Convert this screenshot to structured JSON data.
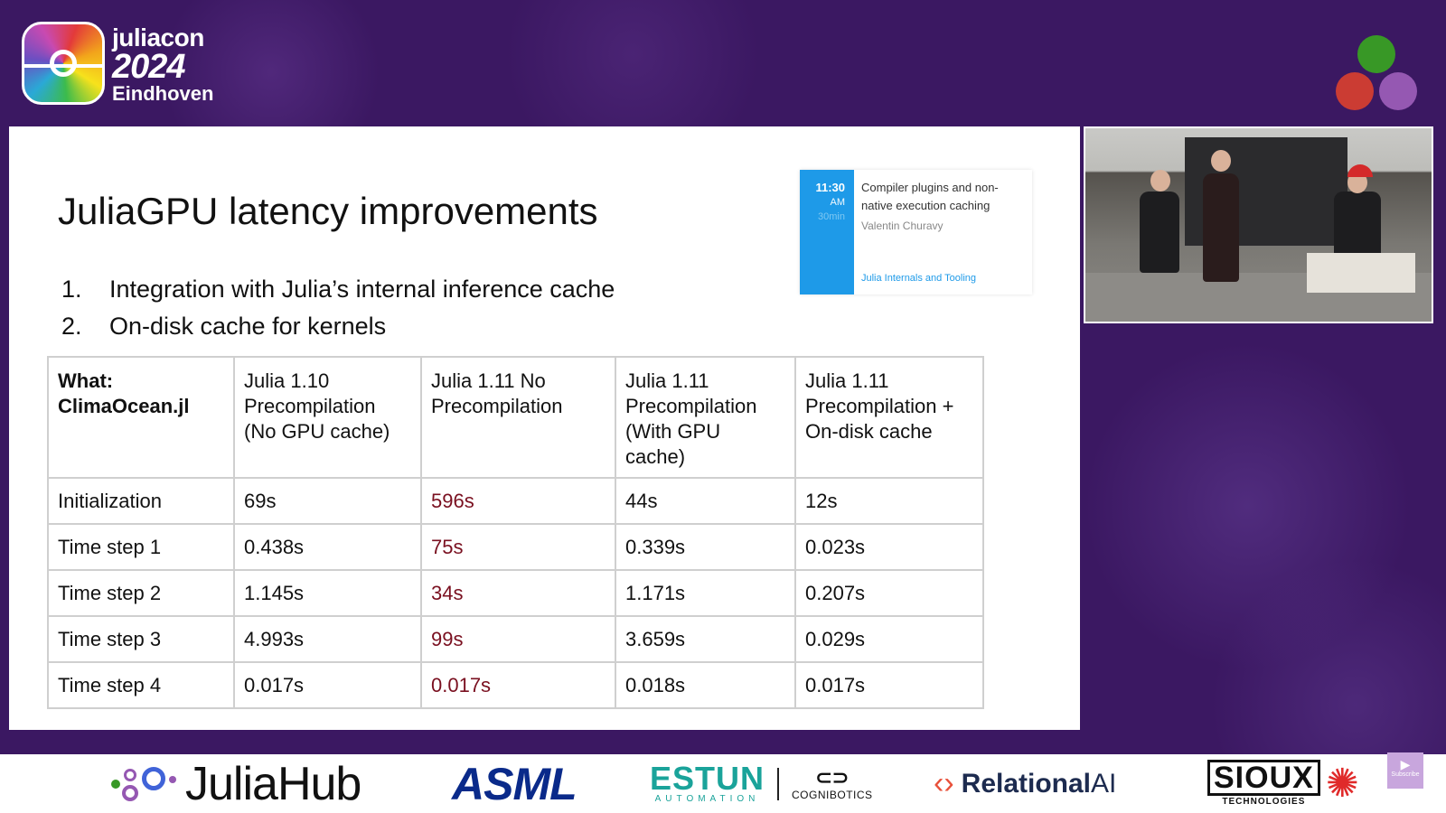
{
  "conference": {
    "logo_line1": "juliacon",
    "logo_line2": "2024",
    "logo_line3": "Eindhoven",
    "dot_colors": [
      "#389826",
      "#cb3c33",
      "#9558b2"
    ]
  },
  "slide": {
    "title": "JuliaGPU latency improvements",
    "bullets": [
      {
        "num": "1.",
        "text": "Integration with Julia’s internal inference cache"
      },
      {
        "num": "2.",
        "text": "On-disk cache for kernels"
      }
    ],
    "table": {
      "headers": [
        "What: ClimaOcean.jl",
        "Julia 1.10 Precompilation (No GPU cache)",
        "Julia 1.11 No Precompilation",
        "Julia 1.11 Precompilation (With GPU cache)",
        "Julia 1.11 Precompilation + On-disk cache"
      ],
      "rows": [
        [
          "Initialization",
          "69s",
          "596s",
          "44s",
          "12s"
        ],
        [
          "Time step 1",
          "0.438s",
          "75s",
          "0.339s",
          "0.023s"
        ],
        [
          "Time step 2",
          "1.145s",
          "34s",
          "1.171s",
          "0.207s"
        ],
        [
          "Time step 3",
          "4.993s",
          "99s",
          "3.659s",
          "0.029s"
        ],
        [
          "Time step 4",
          "0.017s",
          "0.017s",
          "0.018s",
          "0.017s"
        ]
      ],
      "highlight_color": "#7a1020"
    }
  },
  "schedule_card": {
    "time": "11:30",
    "ampm": "AM",
    "duration": "30min",
    "title": "Compiler plugins and non-native execution caching",
    "speaker": "Valentin Churavy",
    "track": "Julia Internals and Tooling",
    "accent": "#1e9ae8"
  },
  "sponsors": {
    "juliahub": "JuliaHub",
    "asml": "ASML",
    "estun": "ESTUN",
    "estun_sub": "AUTOMATION",
    "cognibotics": "COGNIBOTICS",
    "relational_a": "Relational",
    "relational_b": "AI",
    "sioux": "SIOUX",
    "sioux_sub": "TECHNOLOGIES"
  },
  "subscribe_label": "Subscribe"
}
